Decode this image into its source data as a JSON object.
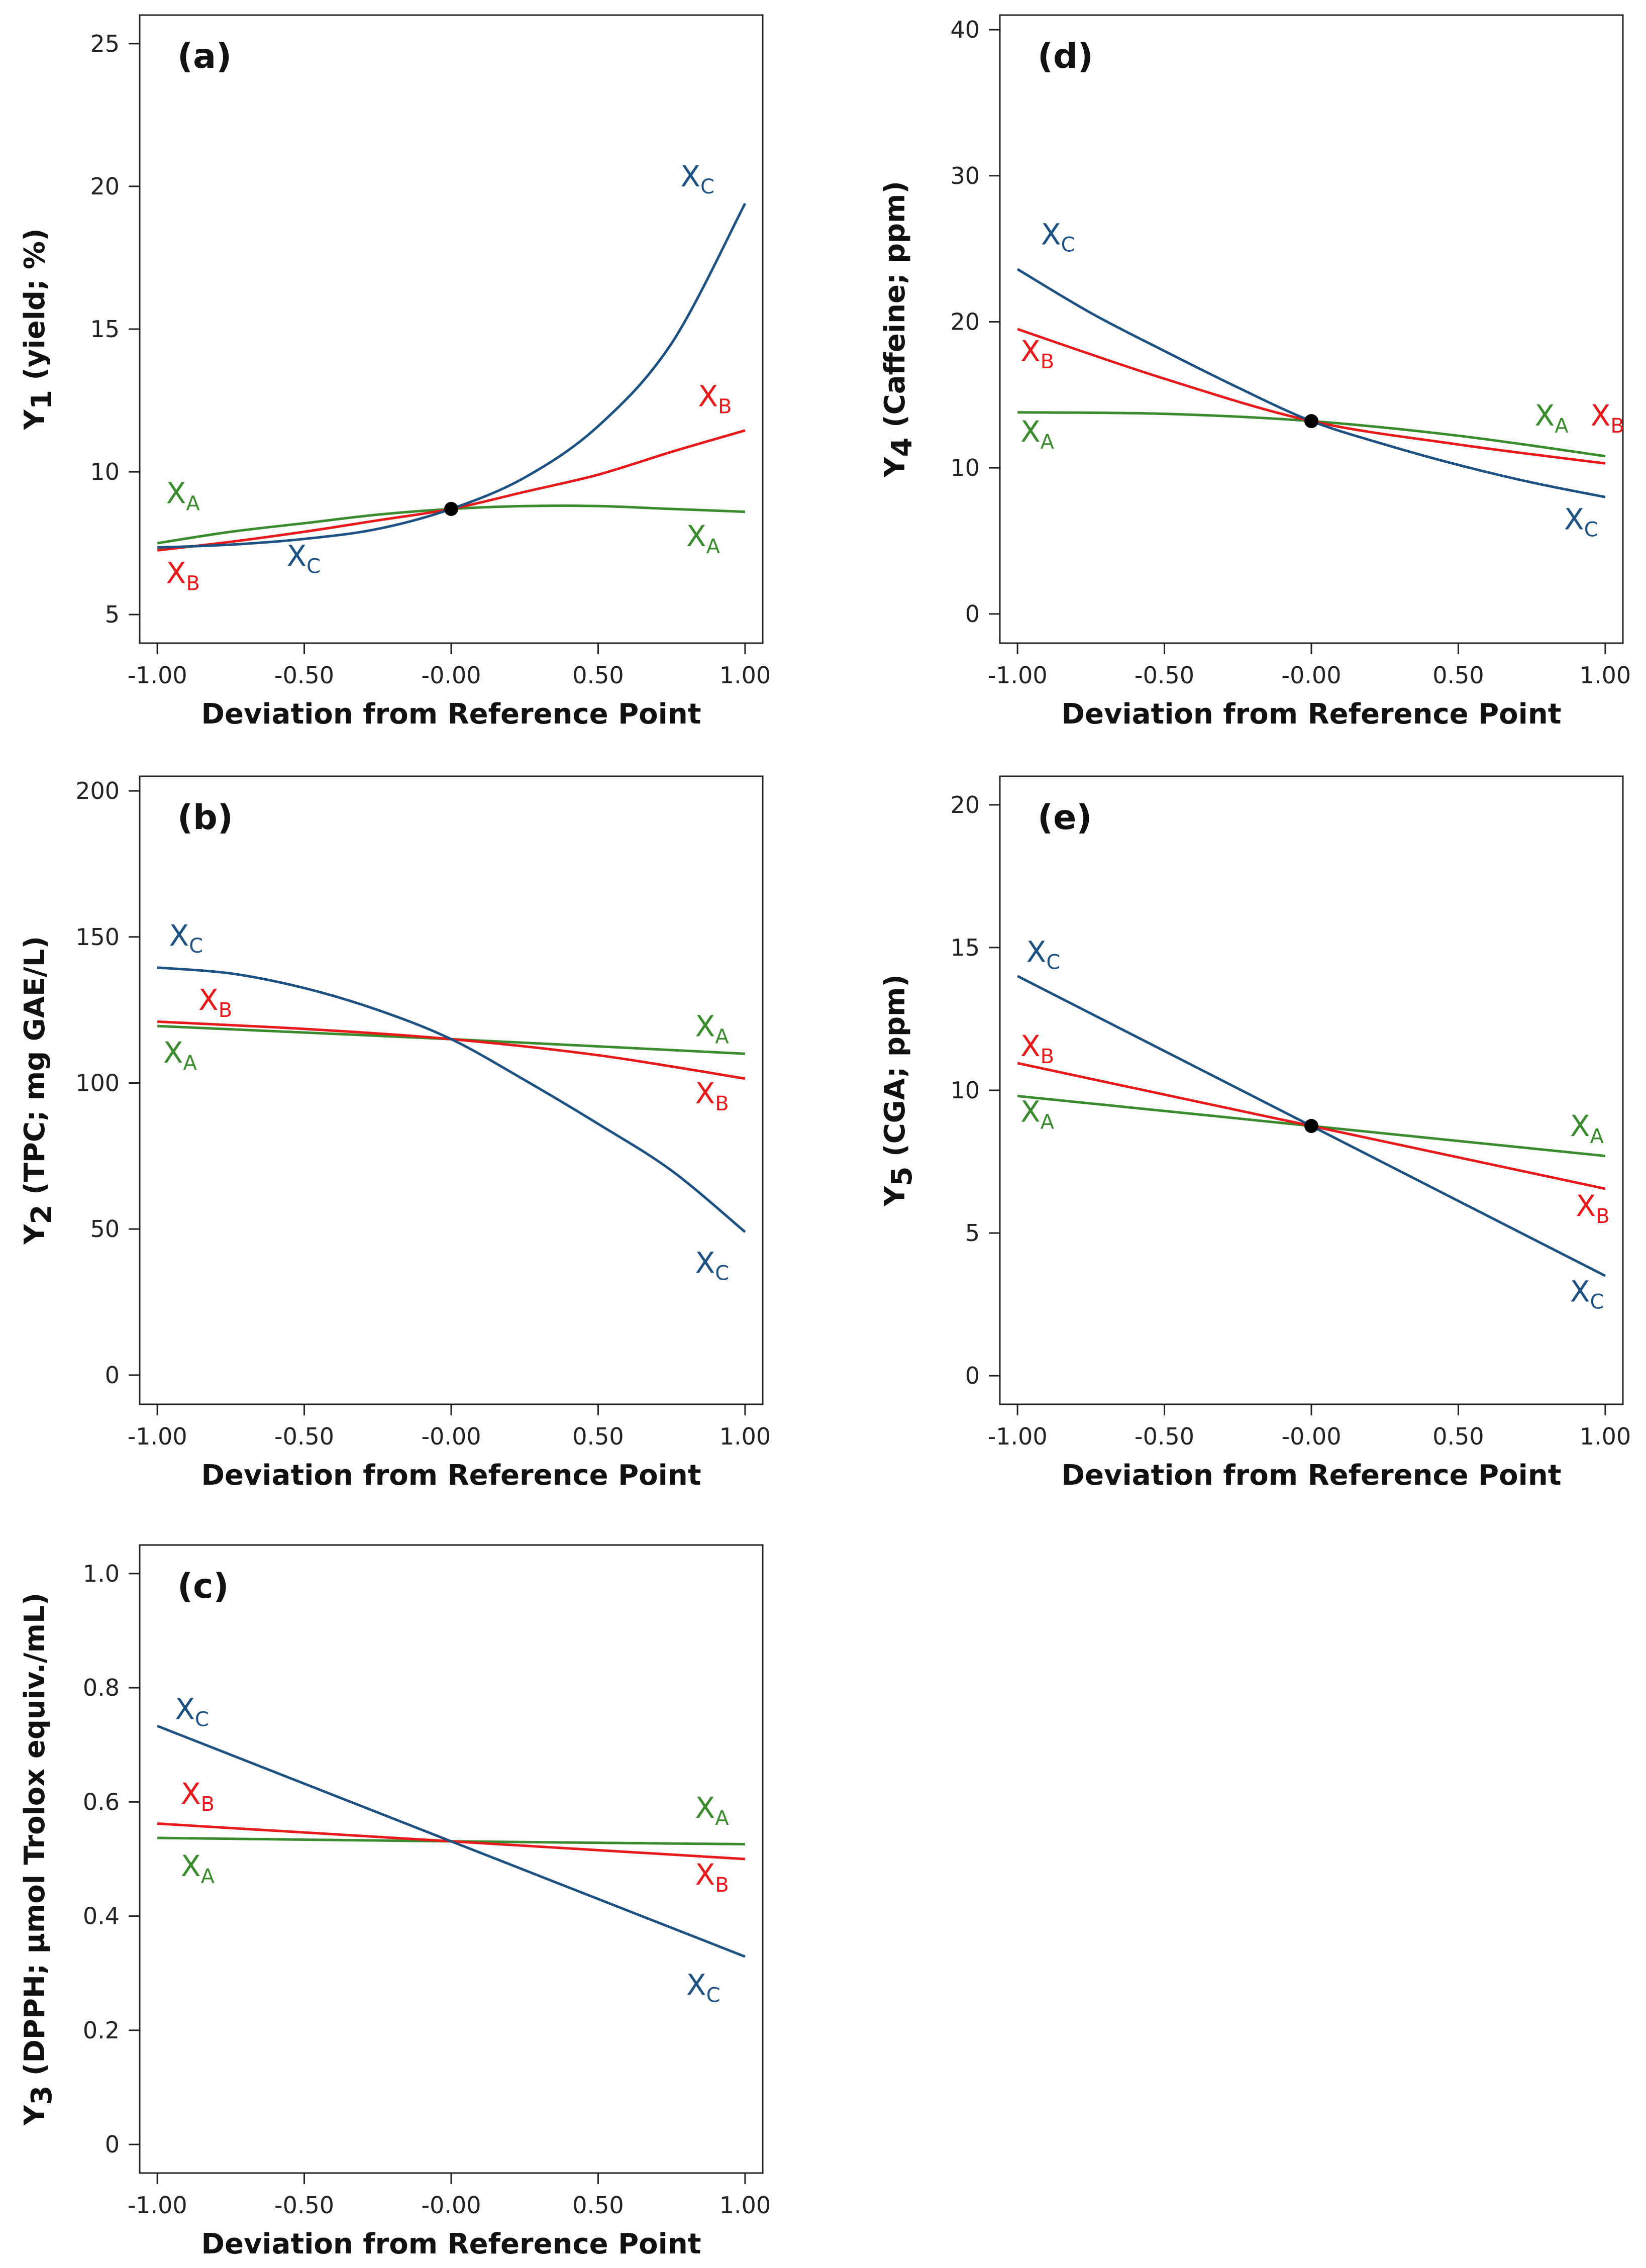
{
  "chart_data": [
    {
      "panel": "(a)",
      "type": "line",
      "xlabel": "Deviation from Reference Point",
      "ylabel_main": "Y",
      "ylabel_sub": "1",
      "ylabel_rest": " (yield; %)",
      "ylim": [
        4,
        26
      ],
      "yticks": [
        5,
        10,
        15,
        20,
        25
      ],
      "ytick_labels": [
        "5",
        "10",
        "15",
        "20",
        "25"
      ],
      "xticks": [
        -1,
        -0.5,
        0,
        0.5,
        1
      ],
      "xtick_labels": [
        "-1.00",
        "-0.50",
        "-0.00",
        "0.50",
        "1.00"
      ],
      "reference_point": {
        "x": 0,
        "y": 8.7
      },
      "series": [
        {
          "name": "XA",
          "color": "#3a8a2e",
          "x": [
            -1,
            -0.75,
            -0.5,
            -0.25,
            0,
            0.25,
            0.5,
            0.75,
            1
          ],
          "y": [
            7.5,
            7.9,
            8.2,
            8.5,
            8.7,
            8.8,
            8.8,
            8.7,
            8.6
          ]
        },
        {
          "name": "XB",
          "color": "#e8191b",
          "x": [
            -1,
            -0.75,
            -0.5,
            -0.25,
            0,
            0.25,
            0.5,
            0.75,
            1
          ],
          "y": [
            7.25,
            7.55,
            7.9,
            8.3,
            8.7,
            9.3,
            9.9,
            10.7,
            11.45
          ]
        },
        {
          "name": "XC",
          "color": "#1c5182",
          "x": [
            -1,
            -0.75,
            -0.5,
            -0.25,
            0,
            0.25,
            0.5,
            0.75,
            1
          ],
          "y": [
            7.35,
            7.45,
            7.65,
            8.0,
            8.7,
            9.8,
            11.6,
            14.5,
            19.4
          ]
        }
      ],
      "labels": [
        {
          "main": "X",
          "sub": "C",
          "color": "#1c5182",
          "x": 0.78,
          "y": 20.0
        },
        {
          "main": "X",
          "sub": "B",
          "color": "#e8191b",
          "x": 0.84,
          "y": 12.3
        },
        {
          "main": "X",
          "sub": "A",
          "color": "#3a8a2e",
          "x": -0.97,
          "y": 8.9
        },
        {
          "main": "X",
          "sub": "A",
          "color": "#3a8a2e",
          "x": 0.8,
          "y": 7.4
        },
        {
          "main": "X",
          "sub": "C",
          "color": "#1c5182",
          "x": -0.56,
          "y": 6.7
        },
        {
          "main": "X",
          "sub": "B",
          "color": "#e8191b",
          "x": -0.97,
          "y": 6.1
        }
      ]
    },
    {
      "panel": "(b)",
      "type": "line",
      "xlabel": "Deviation from Reference Point",
      "ylabel_main": "Y",
      "ylabel_sub": "2",
      "ylabel_rest": " (TPC; mg GAE/L)",
      "ylim": [
        -10,
        205
      ],
      "yticks": [
        0,
        50,
        100,
        150,
        200
      ],
      "ytick_labels": [
        "0",
        "50",
        "100",
        "150",
        "200"
      ],
      "xticks": [
        -1,
        -0.5,
        0,
        0.5,
        1
      ],
      "xtick_labels": [
        "-1.00",
        "-0.50",
        "-0.00",
        "0.50",
        "1.00"
      ],
      "series": [
        {
          "name": "XA",
          "color": "#3a8a2e",
          "x": [
            -1,
            0,
            1
          ],
          "y": [
            119.5,
            115,
            110
          ]
        },
        {
          "name": "XB",
          "color": "#e8191b",
          "x": [
            -1,
            -0.5,
            0,
            0.5,
            1
          ],
          "y": [
            121,
            118.5,
            115,
            109.5,
            101.5
          ]
        },
        {
          "name": "XC",
          "color": "#1c5182",
          "x": [
            -1,
            -0.75,
            -0.5,
            -0.25,
            0,
            0.25,
            0.5,
            0.75,
            1
          ],
          "y": [
            139.5,
            137.5,
            132.5,
            125,
            115,
            101,
            86,
            70,
            49
          ]
        }
      ],
      "labels": [
        {
          "main": "X",
          "sub": "C",
          "color": "#1c5182",
          "x": -0.96,
          "y": 147
        },
        {
          "main": "X",
          "sub": "B",
          "color": "#e8191b",
          "x": -0.86,
          "y": 125
        },
        {
          "main": "X",
          "sub": "A",
          "color": "#3a8a2e",
          "x": -0.98,
          "y": 107
        },
        {
          "main": "X",
          "sub": "A",
          "color": "#3a8a2e",
          "x": 0.83,
          "y": 116
        },
        {
          "main": "X",
          "sub": "B",
          "color": "#e8191b",
          "x": 0.83,
          "y": 93
        },
        {
          "main": "X",
          "sub": "C",
          "color": "#1c5182",
          "x": 0.83,
          "y": 35
        }
      ]
    },
    {
      "panel": "(c)",
      "type": "line",
      "xlabel": "Deviation from Reference Point",
      "ylabel_main": "Y",
      "ylabel_sub": "3",
      "ylabel_rest": " (DPPH; µmol Trolox equiv./mL)",
      "ylim": [
        -0.05,
        1.05
      ],
      "yticks": [
        0,
        0.2,
        0.4,
        0.6,
        0.8,
        1.0
      ],
      "ytick_labels": [
        "0",
        "0.2",
        "0.4",
        "0.6",
        "0.8",
        "1.0"
      ],
      "xticks": [
        -1,
        -0.5,
        0,
        0.5,
        1
      ],
      "xtick_labels": [
        "-1.00",
        "-0.50",
        "-0.00",
        "0.50",
        "1.00"
      ],
      "series": [
        {
          "name": "XA",
          "color": "#3a8a2e",
          "x": [
            -1,
            0,
            1
          ],
          "y": [
            0.537,
            0.531,
            0.526
          ]
        },
        {
          "name": "XB",
          "color": "#e8191b",
          "x": [
            -1,
            0,
            1
          ],
          "y": [
            0.562,
            0.531,
            0.5
          ]
        },
        {
          "name": "XC",
          "color": "#1c5182",
          "x": [
            -1,
            0,
            1
          ],
          "y": [
            0.733,
            0.531,
            0.329
          ]
        }
      ],
      "labels": [
        {
          "main": "X",
          "sub": "C",
          "color": "#1c5182",
          "x": -0.94,
          "y": 0.745
        },
        {
          "main": "X",
          "sub": "B",
          "color": "#e8191b",
          "x": -0.92,
          "y": 0.597
        },
        {
          "main": "X",
          "sub": "A",
          "color": "#3a8a2e",
          "x": -0.92,
          "y": 0.47
        },
        {
          "main": "X",
          "sub": "A",
          "color": "#3a8a2e",
          "x": 0.83,
          "y": 0.572
        },
        {
          "main": "X",
          "sub": "B",
          "color": "#e8191b",
          "x": 0.83,
          "y": 0.455
        },
        {
          "main": "X",
          "sub": "C",
          "color": "#1c5182",
          "x": 0.8,
          "y": 0.262
        }
      ]
    },
    {
      "panel": "(d)",
      "type": "line",
      "xlabel": "Deviation from Reference Point",
      "ylabel_main": "Y",
      "ylabel_sub": "4",
      "ylabel_rest": " (Caffeine; ppm)",
      "ylim": [
        -2,
        41
      ],
      "yticks": [
        0,
        10,
        20,
        30,
        40
      ],
      "ytick_labels": [
        "0",
        "10",
        "20",
        "30",
        "40"
      ],
      "xticks": [
        -1,
        -0.5,
        0,
        0.5,
        1
      ],
      "xtick_labels": [
        "-1.00",
        "-0.50",
        "-0.00",
        "0.50",
        "1.00"
      ],
      "reference_point": {
        "x": 0,
        "y": 13.2
      },
      "series": [
        {
          "name": "XA",
          "color": "#3a8a2e",
          "x": [
            -1,
            -0.5,
            0,
            0.5,
            1
          ],
          "y": [
            13.8,
            13.7,
            13.2,
            12.2,
            10.8
          ]
        },
        {
          "name": "XB",
          "color": "#e8191b",
          "x": [
            -1,
            -0.5,
            0,
            0.5,
            1
          ],
          "y": [
            19.5,
            16.1,
            13.2,
            11.6,
            10.3
          ]
        },
        {
          "name": "XC",
          "color": "#1c5182",
          "x": [
            -1,
            -0.75,
            -0.5,
            -0.25,
            0,
            0.25,
            0.5,
            0.75,
            1
          ],
          "y": [
            23.6,
            20.6,
            18.0,
            15.5,
            13.2,
            11.6,
            10.2,
            9.0,
            8.0
          ]
        }
      ],
      "labels": [
        {
          "main": "X",
          "sub": "C",
          "color": "#1c5182",
          "x": -0.92,
          "y": 25.3
        },
        {
          "main": "X",
          "sub": "B",
          "color": "#e8191b",
          "x": -0.99,
          "y": 17.3
        },
        {
          "main": "X",
          "sub": "A",
          "color": "#3a8a2e",
          "x": -0.99,
          "y": 11.8
        },
        {
          "main": "X",
          "sub": "A",
          "color": "#3a8a2e",
          "x": 0.76,
          "y": 12.9
        },
        {
          "main": "X",
          "sub": "B",
          "color": "#e8191b",
          "x": 0.95,
          "y": 12.9
        },
        {
          "main": "X",
          "sub": "C",
          "color": "#1c5182",
          "x": 0.86,
          "y": 5.8
        }
      ]
    },
    {
      "panel": "(e)",
      "type": "line",
      "xlabel": "Deviation from Reference Point",
      "ylabel_main": "Y",
      "ylabel_sub": "5",
      "ylabel_rest": " (CGA; ppm)",
      "ylim": [
        -1,
        21
      ],
      "yticks": [
        0,
        5,
        10,
        15,
        20
      ],
      "ytick_labels": [
        "0",
        "5",
        "10",
        "15",
        "20"
      ],
      "xticks": [
        -1,
        -0.5,
        0,
        0.5,
        1
      ],
      "xtick_labels": [
        "-1.00",
        "-0.50",
        "-0.00",
        "0.50",
        "1.00"
      ],
      "reference_point": {
        "x": 0,
        "y": 8.75
      },
      "series": [
        {
          "name": "XA",
          "color": "#3a8a2e",
          "x": [
            -1,
            0,
            1
          ],
          "y": [
            9.8,
            8.75,
            7.7
          ]
        },
        {
          "name": "XB",
          "color": "#e8191b",
          "x": [
            -1,
            0,
            1
          ],
          "y": [
            10.95,
            8.75,
            6.55
          ]
        },
        {
          "name": "XC",
          "color": "#1c5182",
          "x": [
            -1,
            0,
            1
          ],
          "y": [
            14.0,
            8.75,
            3.5
          ]
        }
      ],
      "labels": [
        {
          "main": "X",
          "sub": "C",
          "color": "#1c5182",
          "x": -0.97,
          "y": 14.5
        },
        {
          "main": "X",
          "sub": "B",
          "color": "#e8191b",
          "x": -0.99,
          "y": 11.2
        },
        {
          "main": "X",
          "sub": "A",
          "color": "#3a8a2e",
          "x": -0.99,
          "y": 8.9
        },
        {
          "main": "X",
          "sub": "A",
          "color": "#3a8a2e",
          "x": 0.88,
          "y": 8.4
        },
        {
          "main": "X",
          "sub": "B",
          "color": "#e8191b",
          "x": 0.9,
          "y": 5.6
        },
        {
          "main": "X",
          "sub": "C",
          "color": "#1c5182",
          "x": 0.88,
          "y": 2.6
        }
      ]
    }
  ]
}
